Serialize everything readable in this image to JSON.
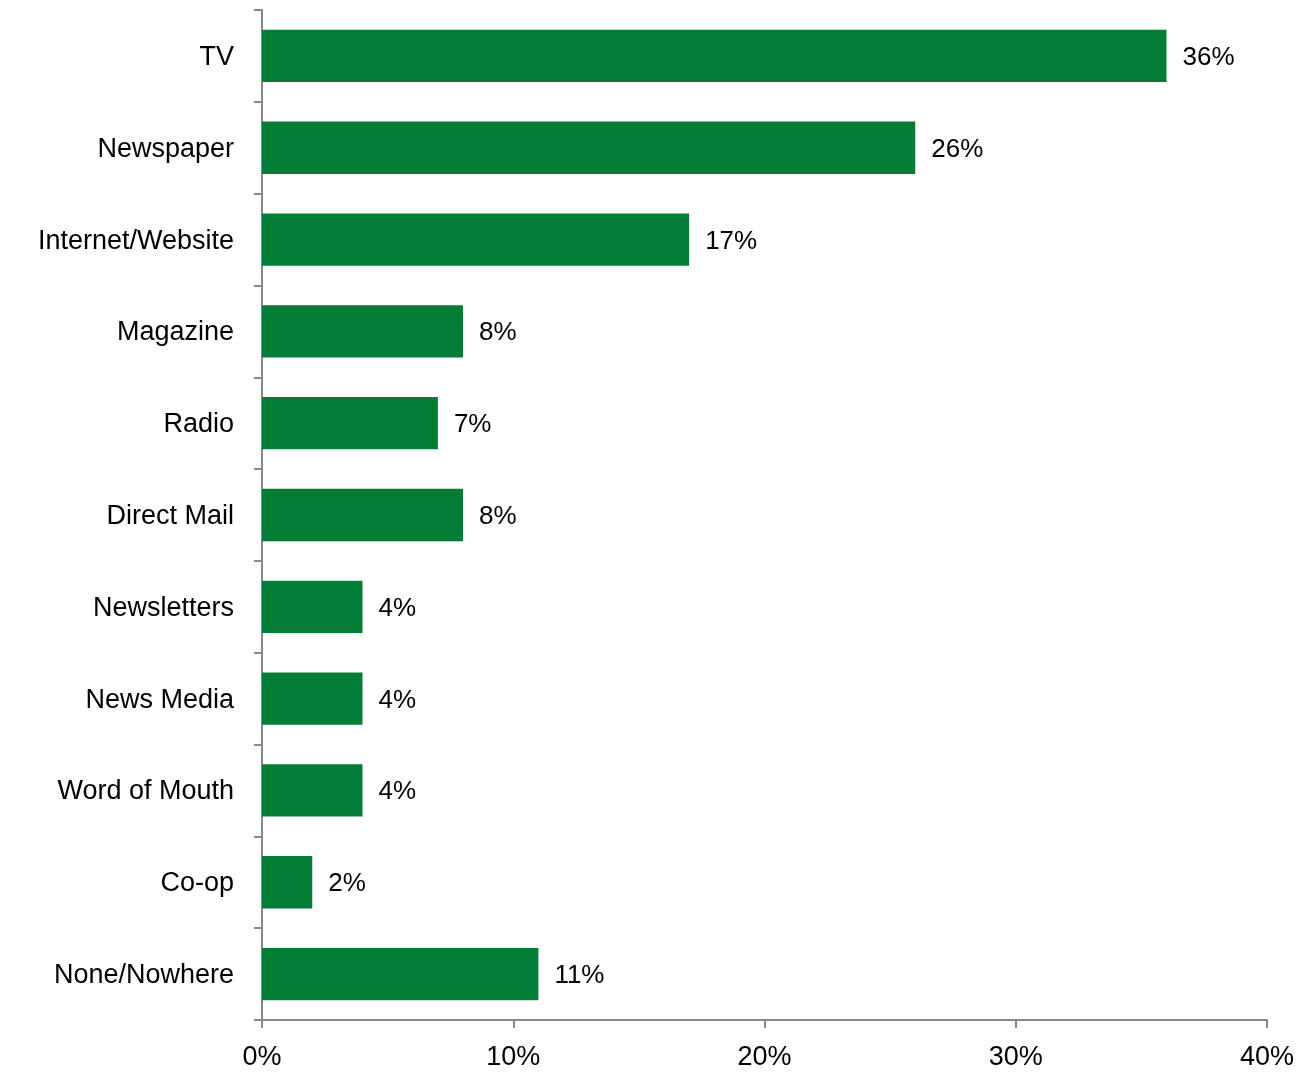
{
  "chart_data": {
    "type": "bar",
    "orientation": "horizontal",
    "categories": [
      "TV",
      "Newspaper",
      "Internet/Website",
      "Magazine",
      "Radio",
      "Direct Mail",
      "Newsletters",
      "News Media",
      "Word of Mouth",
      "Co-op",
      "None/Nowhere"
    ],
    "values": [
      36,
      26,
      17,
      8,
      7,
      8,
      4,
      4,
      4,
      2,
      11
    ],
    "value_labels": [
      "36%",
      "26%",
      "17%",
      "8%",
      "7%",
      "8%",
      "4%",
      "4%",
      "4%",
      "2%",
      "11%"
    ],
    "color": "#037d36",
    "xlim": [
      0,
      40
    ],
    "xticks": [
      {
        "value": 0,
        "label": "0%"
      },
      {
        "value": 10,
        "label": "10%"
      },
      {
        "value": 20,
        "label": "20%"
      },
      {
        "value": 30,
        "label": "30%"
      },
      {
        "value": 40,
        "label": "40%"
      }
    ],
    "grid": false
  }
}
